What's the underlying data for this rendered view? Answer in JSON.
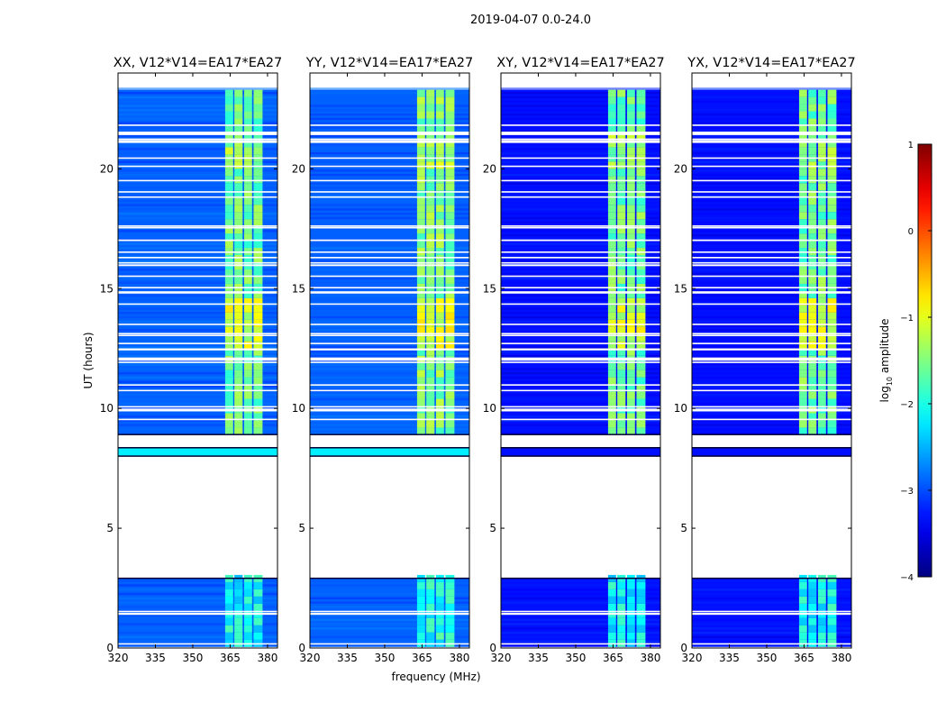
{
  "figure": {
    "suptitle": "2019-04-07 0.0-24.0",
    "xlabel": "frequency (MHz)",
    "ylabel": "UT (hours)",
    "colorbar_label_base": "log",
    "colorbar_label_sub": "10",
    "colorbar_label_rest": " amplitude"
  },
  "chart_data": {
    "type": "heatmap",
    "title": "2019-04-07 0.0-24.0",
    "xlabel": "frequency (MHz)",
    "ylabel": "UT (hours)",
    "xlim": [
      320,
      384
    ],
    "ylim": [
      0,
      24
    ],
    "xticks": [
      320,
      335,
      350,
      365,
      380
    ],
    "yticks": [
      0,
      5,
      10,
      15,
      20
    ],
    "colorbar": {
      "label": "log10 amplitude",
      "range": [
        -4,
        1
      ],
      "ticks": [
        -4,
        -3,
        -2,
        -1,
        0,
        1
      ],
      "colormap": "jet"
    },
    "rfi_band_mhz": [
      363,
      378
    ],
    "data_gaps_ut": [
      [
        3.0,
        7.95
      ],
      [
        8.45,
        8.85
      ]
    ],
    "panels": [
      {
        "title": "XX, V12*V14=EA17*EA27",
        "baseline_log10": -2.9,
        "band_log10": -1.6,
        "segment_8ut_log10": -2.2
      },
      {
        "title": "YY, V12*V14=EA17*EA27",
        "baseline_log10": -2.9,
        "band_log10": -1.5,
        "segment_8ut_log10": -2.2
      },
      {
        "title": "XY, V12*V14=EA17*EA27",
        "baseline_log10": -3.3,
        "band_log10": -1.6,
        "segment_8ut_log10": -3.3
      },
      {
        "title": "YX, V12*V14=EA17*EA27",
        "baseline_log10": -3.3,
        "band_log10": -1.6,
        "segment_8ut_log10": -3.3
      }
    ]
  }
}
